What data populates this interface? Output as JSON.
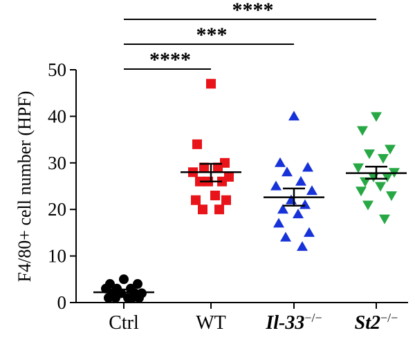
{
  "chart_data": {
    "type": "scatter",
    "ylabel": "F4/80+ cell number (HPF)",
    "ylim": [
      0,
      50
    ],
    "yticks": [
      0,
      10,
      20,
      30,
      40,
      50
    ],
    "grid": false,
    "categories": [
      {
        "key": "ctrl",
        "label": "Ctrl",
        "italic": "",
        "sup": ""
      },
      {
        "key": "wt",
        "label": "WT",
        "italic": "",
        "sup": ""
      },
      {
        "key": "il33",
        "label": "",
        "italic": "Il-33",
        "sup": "−/−"
      },
      {
        "key": "st2",
        "label": "",
        "italic": "St2",
        "sup": "−/−"
      }
    ],
    "series": [
      {
        "category": "ctrl",
        "marker": "circle",
        "color": "#000000",
        "values": [
          5,
          4,
          4,
          3,
          3,
          3,
          2,
          2,
          2,
          2,
          1,
          1,
          1,
          1,
          1
        ],
        "mean": 2.2,
        "sem_low": 1.6,
        "sem_high": 2.8
      },
      {
        "category": "wt",
        "marker": "square",
        "color": "#e8141a",
        "values": [
          47,
          34,
          30,
          29,
          29,
          28,
          27,
          26,
          26,
          26,
          23,
          22,
          22,
          20,
          20
        ],
        "mean": 28,
        "sem_low": 26,
        "sem_high": 29.8
      },
      {
        "category": "il33",
        "marker": "triangle-up",
        "color": "#1632d8",
        "values": [
          40,
          30,
          29,
          28,
          26,
          25,
          24,
          22,
          21,
          20,
          19,
          17,
          15,
          14,
          12
        ],
        "mean": 22.6,
        "sem_low": 20.8,
        "sem_high": 24.5
      },
      {
        "category": "st2",
        "marker": "triangle-down",
        "color": "#27a844",
        "values": [
          40,
          37,
          33,
          32,
          31,
          29,
          28,
          27,
          27,
          26,
          25,
          24,
          23,
          21,
          18
        ],
        "mean": 27.8,
        "sem_low": 26.6,
        "sem_high": 29.2
      }
    ],
    "significance": [
      {
        "from": "ctrl",
        "to": "wt",
        "label": "****"
      },
      {
        "from": "ctrl",
        "to": "il33",
        "label": "***"
      },
      {
        "from": "ctrl",
        "to": "st2",
        "label": "****"
      }
    ]
  }
}
